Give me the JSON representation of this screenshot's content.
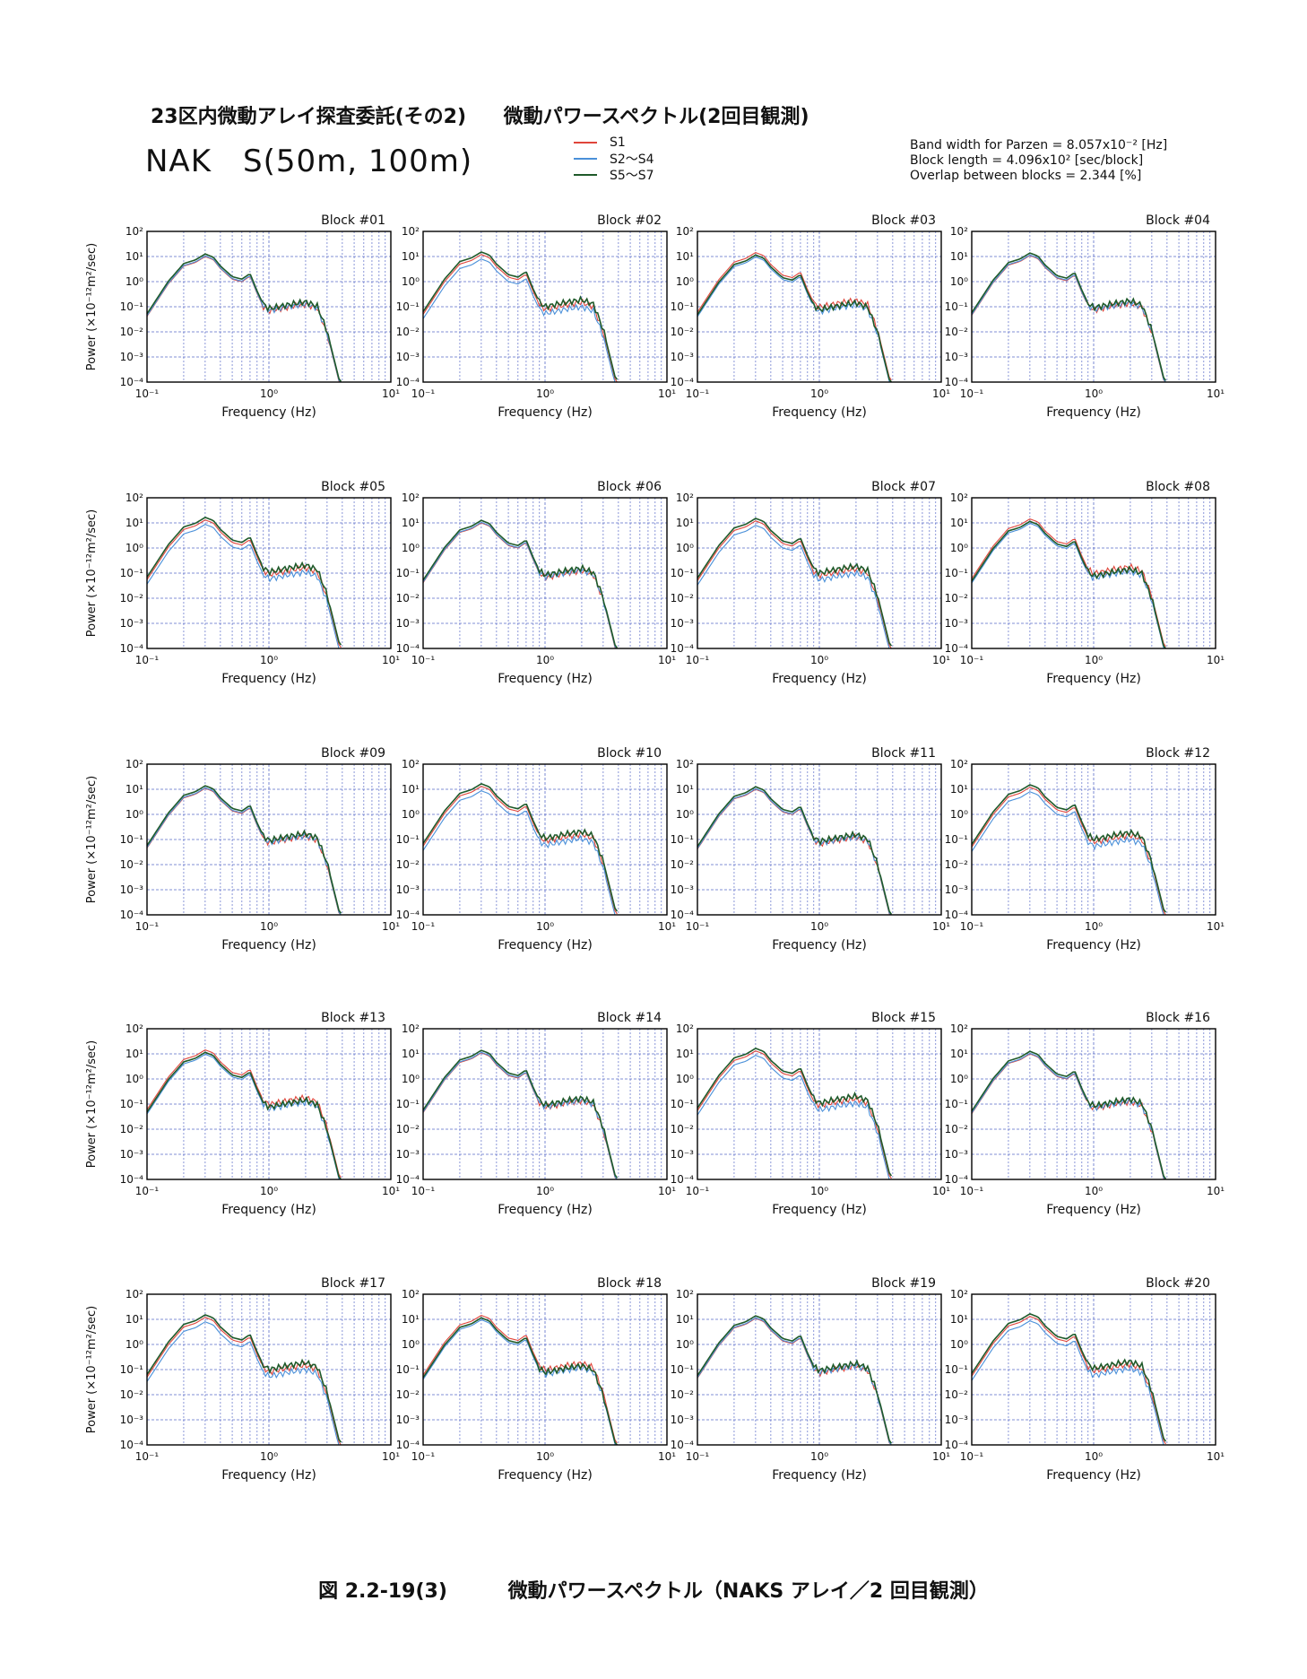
{
  "header": {
    "title_jp": "23区内微動アレイ探査委託(その2)",
    "subtitle_jp": "微動パワースペクトル(2回目観測)",
    "site_title": "NAK　S(50m, 100m)"
  },
  "legend": [
    {
      "label": "S1",
      "color": "#e0453a"
    },
    {
      "label": "S2～S4",
      "color": "#4a90d9"
    },
    {
      "label": "S5～S7",
      "color": "#1f5a2a"
    }
  ],
  "params": {
    "bandwidth": "Band width for Parzen = 8.057x10⁻² [Hz]",
    "block_length": "Block length = 4.096x10² [sec/block]",
    "overlap": "Overlap between blocks = 2.344 [%]"
  },
  "caption": {
    "figure_no": "図 2.2-19(3)",
    "title": "微動パワースペクトル（NAKS アレイ／2 回目観測）"
  },
  "chart_data": {
    "type": "line",
    "grid": true,
    "layout": "5 rows x 4 columns",
    "xlabel": "Frequency (Hz)",
    "ylabel": "Power (×10⁻¹²m²/sec)",
    "x_scale": "log",
    "y_scale": "log",
    "xlim": [
      0.1,
      10
    ],
    "ylim": [
      0.0001,
      100
    ],
    "x_ticks": [
      "10⁻¹",
      "10⁰",
      "10¹"
    ],
    "y_ticks": [
      "10²",
      "10¹",
      "10⁰",
      "10⁻¹",
      "10⁻²",
      "10⁻³",
      "10⁻⁴"
    ],
    "panels": [
      "Block #01",
      "Block #02",
      "Block #03",
      "Block #04",
      "Block #05",
      "Block #06",
      "Block #07",
      "Block #08",
      "Block #09",
      "Block #10",
      "Block #11",
      "Block #12",
      "Block #13",
      "Block #14",
      "Block #15",
      "Block #16",
      "Block #17",
      "Block #18",
      "Block #19",
      "Block #20"
    ],
    "typical_spectrum": {
      "freq_hz": [
        0.1,
        0.15,
        0.2,
        0.25,
        0.3,
        0.35,
        0.4,
        0.5,
        0.6,
        0.7,
        0.8,
        0.9,
        1.0,
        1.5,
        2.0,
        2.5,
        3.0,
        3.5,
        3.8
      ],
      "power": [
        0.05,
        1.0,
        5.0,
        7.0,
        12.0,
        9.0,
        4.0,
        1.5,
        1.2,
        2.0,
        0.4,
        0.12,
        0.08,
        0.12,
        0.15,
        0.1,
        0.01,
        0.0005,
        0.0001
      ]
    },
    "series": [
      {
        "name": "S1",
        "color": "#e0453a",
        "scale": 1.0
      },
      {
        "name": "S2～S4",
        "color": "#4a90d9",
        "scale": 0.8
      },
      {
        "name": "S5～S7",
        "color": "#1f5a2a",
        "scale": 1.15
      }
    ]
  }
}
